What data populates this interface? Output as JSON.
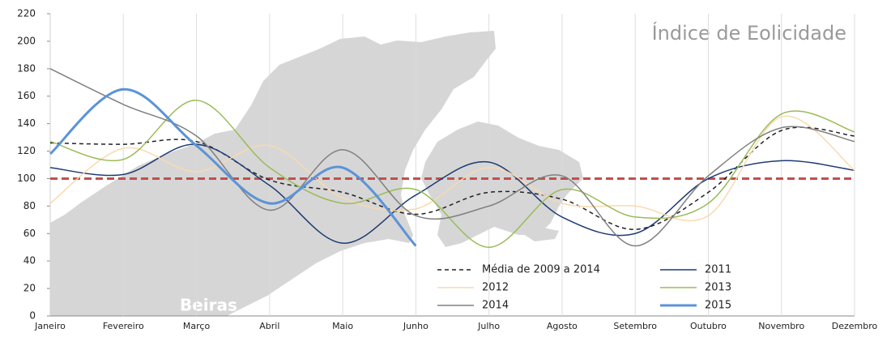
{
  "chart_data": {
    "type": "line",
    "title": "Índice de Eolicidade",
    "map_label": "Beiras",
    "categories": [
      "Janeiro",
      "Fevereiro",
      "Março",
      "Abril",
      "Maio",
      "Junho",
      "Julho",
      "Agosto",
      "Setembro",
      "Outubro",
      "Novembro",
      "Dezembro"
    ],
    "series": [
      {
        "name": "Média de 2009 a 2014",
        "color": "#222222",
        "dashed": true,
        "line_width": 1.5,
        "values": [
          126,
          125,
          127,
          99,
          90,
          74,
          90,
          85,
          63,
          90,
          135,
          131
        ]
      },
      {
        "name": "2011",
        "color": "#1f3b73",
        "line_width": 1.5,
        "values": [
          108,
          103,
          125,
          95,
          53,
          88,
          112,
          72,
          60,
          100,
          113,
          106
        ]
      },
      {
        "name": "2012",
        "color": "#f9d9b0",
        "line_width": 1.5,
        "values": [
          82,
          122,
          105,
          124,
          86,
          78,
          108,
          82,
          80,
          73,
          145,
          106
        ]
      },
      {
        "name": "2013",
        "color": "#9bbb59",
        "line_width": 1.5,
        "values": [
          127,
          114,
          157,
          108,
          82,
          92,
          50,
          92,
          72,
          82,
          147,
          134
        ]
      },
      {
        "name": "2014",
        "color": "#808080",
        "line_width": 1.5,
        "values": [
          180,
          154,
          131,
          77,
          121,
          73,
          80,
          102,
          51,
          102,
          137,
          127
        ]
      },
      {
        "name": "2015",
        "color": "#5b93d8",
        "line_width": 3,
        "values": [
          118,
          165,
          124,
          82,
          108,
          51,
          null,
          null,
          null,
          null,
          null,
          null
        ]
      }
    ],
    "reference_line": {
      "value": 100,
      "color": "#c0504d"
    },
    "ylim": [
      0,
      220
    ],
    "yticks": [
      0,
      20,
      40,
      60,
      80,
      100,
      120,
      140,
      160,
      180,
      200,
      220
    ],
    "grid": "vertical"
  }
}
